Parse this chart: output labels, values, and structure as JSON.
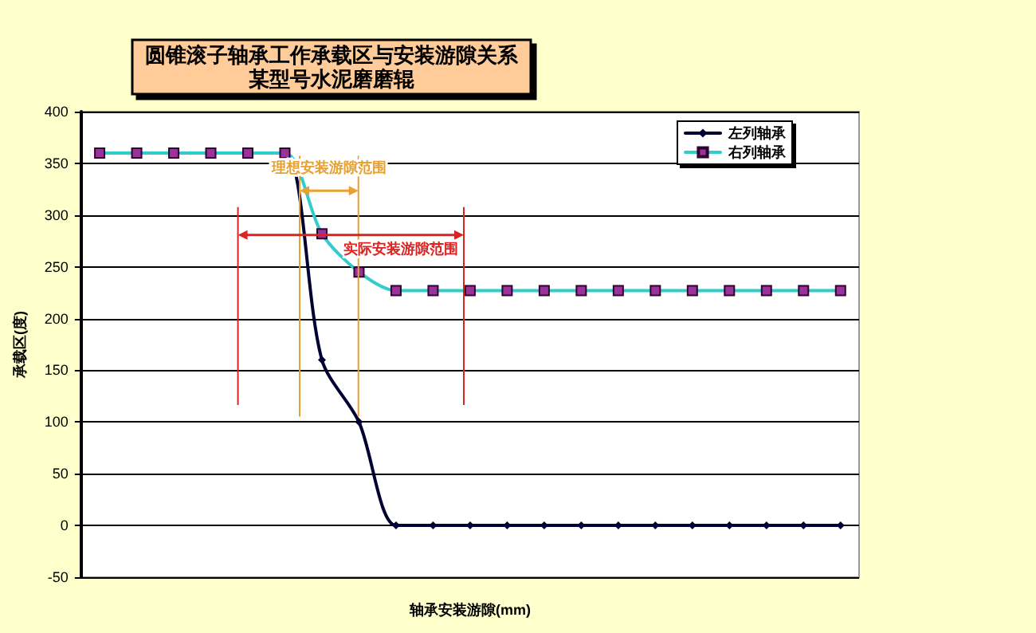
{
  "chart_data": {
    "type": "line",
    "title": "圆锥滚子轴承工作承载区与安装游隙关系",
    "subtitle": "某型号水泥磨磨辊",
    "xlabel": "轴承安装游隙(mm)",
    "ylabel": "承载区(度)",
    "categories": [
      null,
      null,
      null,
      null,
      null,
      null,
      null,
      null,
      null,
      null,
      null,
      null,
      null,
      null,
      null,
      null,
      null,
      null,
      null,
      null,
      null
    ],
    "series": [
      {
        "name": "左列轴承",
        "color": "#000033",
        "marker": "diamond",
        "values": [
          360,
          360,
          360,
          360,
          360,
          360,
          160,
          100,
          0,
          0,
          0,
          0,
          0,
          0,
          0,
          0,
          0,
          0,
          0,
          0,
          0
        ]
      },
      {
        "name": "右列轴承",
        "color": "#33cccc",
        "marker": "square",
        "values": [
          360,
          360,
          360,
          360,
          360,
          360,
          282,
          245,
          227,
          227,
          227,
          227,
          227,
          227,
          227,
          227,
          227,
          227,
          227,
          227,
          227
        ]
      }
    ],
    "ylim": [
      -50,
      400
    ],
    "yticks": [
      -50,
      0,
      50,
      100,
      150,
      200,
      250,
      300,
      350,
      400
    ],
    "grid": "y",
    "legend": "top right",
    "annotations": [
      "理想安装游隙范围",
      "实际安装游隙范围"
    ]
  }
}
